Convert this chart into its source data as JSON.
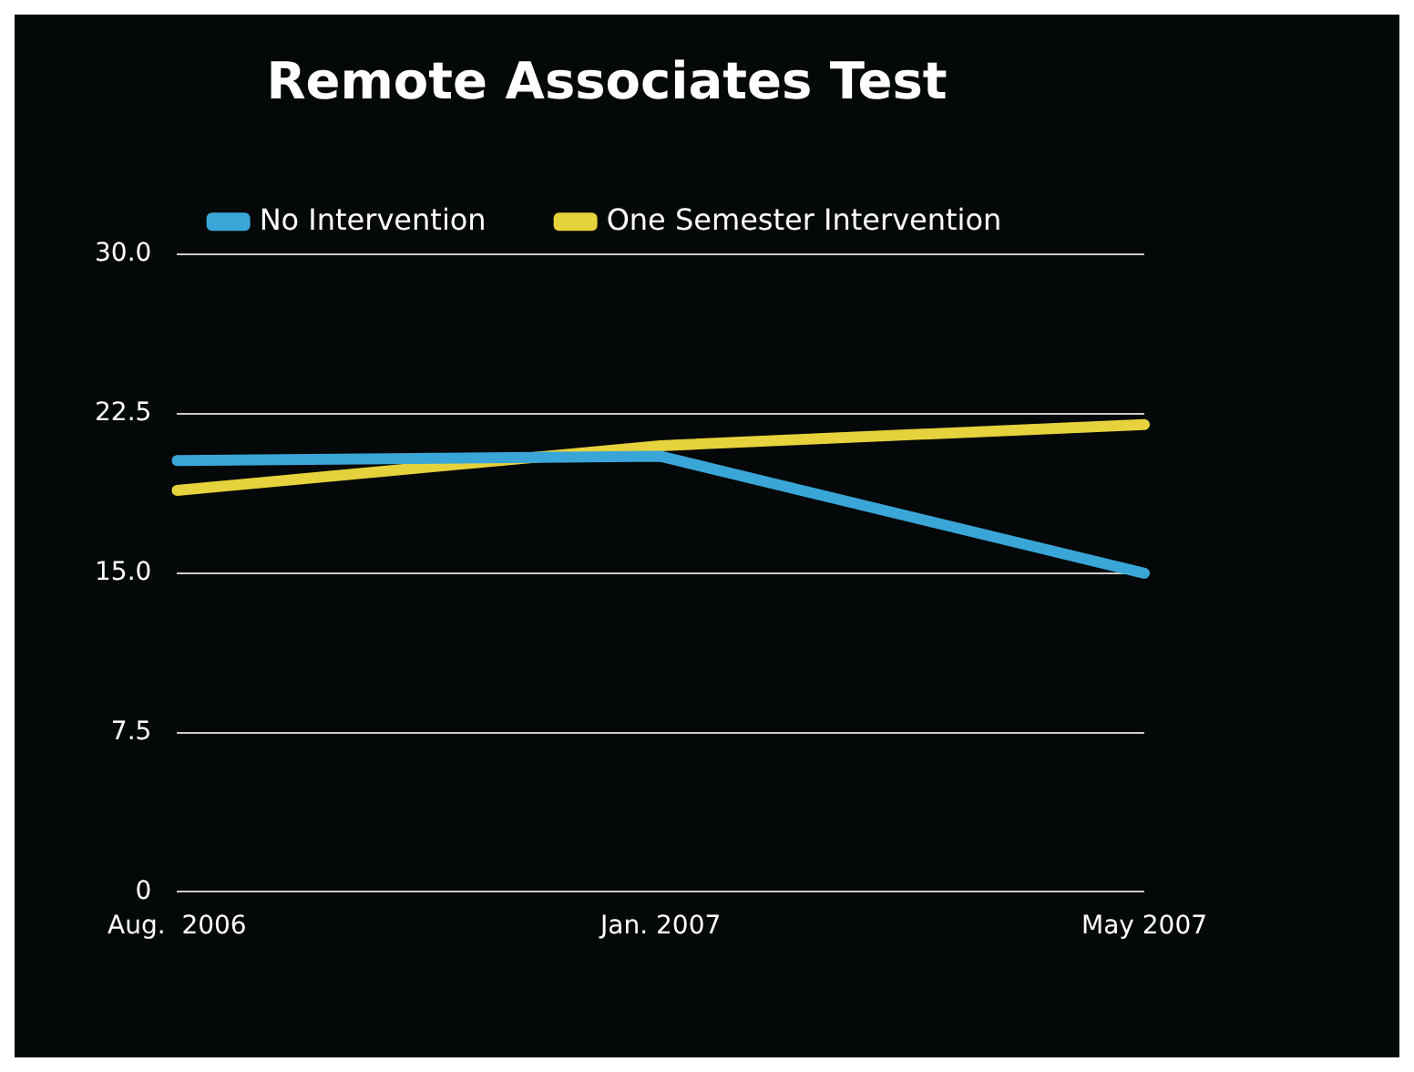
{
  "chart_data": {
    "type": "line",
    "title": "Remote Associates Test",
    "categories": [
      "Aug.  2006",
      "Jan. 2007",
      "May 2007"
    ],
    "series": [
      {
        "name": "No Intervention",
        "color": "#3aa6d8",
        "values": [
          20.3,
          20.5,
          15.0
        ]
      },
      {
        "name": "One Semester Intervention",
        "color": "#e6d23c",
        "values": [
          18.9,
          21.0,
          22.0
        ]
      }
    ],
    "ylim": [
      0,
      30
    ],
    "yticks": [
      0,
      7.5,
      {
        "value": 15,
        "label": "15.0"
      },
      22.5,
      {
        "value": 30,
        "label": "30.0"
      }
    ],
    "grid": "y",
    "legend": "top",
    "marker": "none",
    "line_style": "solid"
  }
}
